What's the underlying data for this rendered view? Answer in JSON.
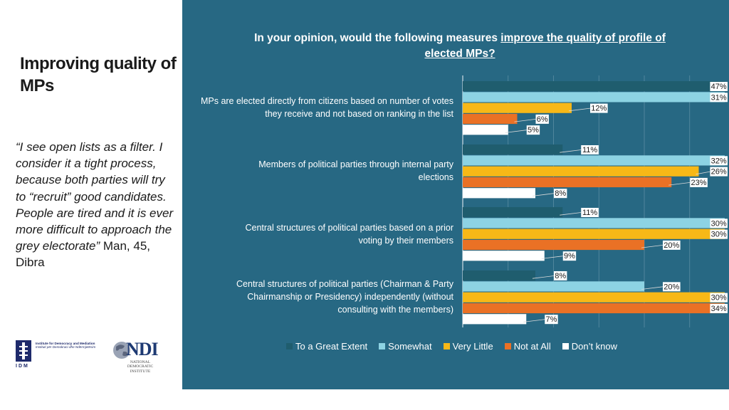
{
  "side": {
    "title": "Improving quality of MPs",
    "quote_text": "“I see open lists as a filter. I consider it a tight process, because both parties will try to “recruit” good candidates. People are tired and it is ever more difficult to approach the grey electorate”",
    "quote_attribution": " Man, 45, Dibra"
  },
  "logos": {
    "idm_line1": "Institute for Democracy and Mediation",
    "idm_line2": "Instituti për Demokraci dhe Ndërmjetësim",
    "idm_letters": "IDM",
    "ndi_word": "NDI",
    "ndi_line1": "NATIONAL",
    "ndi_line2": "DEMOCRATIC",
    "ndi_line3": "INSTITUTE"
  },
  "colors": {
    "panel_bg": "#276883",
    "to_a_great_extent": "#1f5d6e",
    "somewhat": "#8dd3e3",
    "very_little": "#f7b817",
    "not_at_all": "#ea7125",
    "dont_know": "#ffffff"
  },
  "chart_data": {
    "type": "bar",
    "orientation": "horizontal",
    "title_part1": "In your opinion, would the following measures ",
    "title_part2": "improve the quality of profile of elected MPs?",
    "categories": [
      "MPs are elected directly from citizens based on number of votes they receive and not based on ranking in the list",
      "Members of political parties through internal party elections",
      "Central structures of political parties based on a prior voting by their members",
      "Central structures of political parties (Chairman & Party Chairmanship or Presidency) independently (without consulting with the members)"
    ],
    "series": [
      {
        "name": "To a Great Extent",
        "values": [
          47,
          11,
          11,
          8
        ]
      },
      {
        "name": "Somewhat",
        "values": [
          31,
          32,
          30,
          20
        ]
      },
      {
        "name": "Very Little",
        "values": [
          12,
          26,
          30,
          30
        ]
      },
      {
        "name": "Not at All",
        "values": [
          6,
          23,
          20,
          34
        ]
      },
      {
        "name": "Don’t know",
        "values": [
          5,
          8,
          9,
          7
        ]
      }
    ],
    "value_suffix": "%",
    "xlim": [
      0,
      50
    ],
    "grid": true,
    "legend_position": "bottom"
  }
}
